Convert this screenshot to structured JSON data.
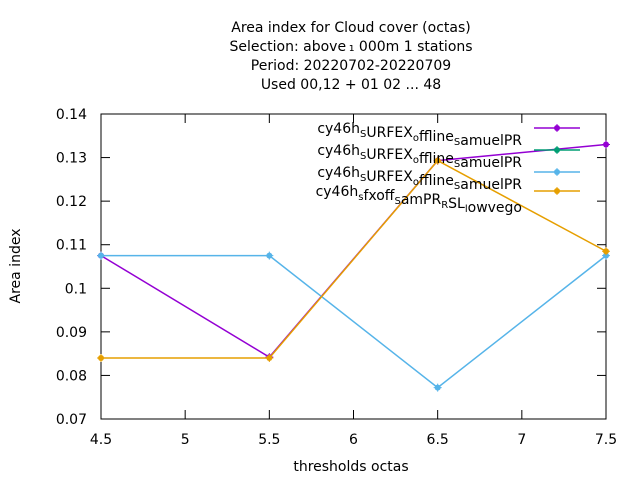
{
  "chart_data": {
    "type": "line",
    "title_lines": [
      "Area index  for Cloud cover (octas)",
      "Selection: above ₁ 000m       1 stations",
      "Period: 20220702-20220709",
      "Used  00,12  + 01 02 ... 48"
    ],
    "xlabel": "thresholds octas",
    "ylabel": "Area index",
    "xlim": [
      4.5,
      7.5
    ],
    "ylim": [
      0.07,
      0.14
    ],
    "xticks": [
      "4.5",
      "5",
      "5.5",
      "6",
      "6.5",
      "7",
      "7.5"
    ],
    "xtick_values": [
      4.5,
      5,
      5.5,
      6,
      6.5,
      7,
      7.5
    ],
    "yticks": [
      "0.07",
      "0.08",
      "0.09",
      "0.1",
      "0.11",
      "0.12",
      "0.13",
      "0.14"
    ],
    "ytick_values": [
      0.07,
      0.08,
      0.09,
      0.1,
      0.11,
      0.12,
      0.13,
      0.14
    ],
    "grid": false,
    "legend_position": "top-right",
    "series": [
      {
        "name": "cy46h_SURFEX_offline_SamuelPR",
        "legend_parts": [
          [
            "cy46h",
            "n"
          ],
          [
            "S",
            "s"
          ],
          [
            "URFEX",
            "n"
          ],
          [
            "o",
            "s"
          ],
          [
            "ffline",
            "n"
          ],
          [
            "S",
            "s"
          ],
          [
            "amuelPR",
            "n"
          ]
        ],
        "color": "#9400d3",
        "x": [
          4.5,
          5.5,
          6.5,
          7.5
        ],
        "y": [
          0.1075,
          0.0842,
          0.1293,
          0.133
        ]
      },
      {
        "name": "cy46h_SURFEX_offline_SamuelPR",
        "legend_parts": [
          [
            "cy46h",
            "n"
          ],
          [
            "S",
            "s"
          ],
          [
            "URFEX",
            "n"
          ],
          [
            "o",
            "s"
          ],
          [
            "ffline",
            "n"
          ],
          [
            "S",
            "s"
          ],
          [
            "amuelPR",
            "n"
          ]
        ],
        "color": "#009e73",
        "x": [],
        "y": []
      },
      {
        "name": "cy46h_SURFEX_offline_SamuelPR",
        "legend_parts": [
          [
            "cy46h",
            "n"
          ],
          [
            "S",
            "s"
          ],
          [
            "URFEX",
            "n"
          ],
          [
            "o",
            "s"
          ],
          [
            "ffline",
            "n"
          ],
          [
            "S",
            "s"
          ],
          [
            "amuelPR",
            "n"
          ]
        ],
        "color": "#56b4e9",
        "x": [
          4.5,
          5.5,
          6.5,
          7.5
        ],
        "y": [
          0.1075,
          0.1075,
          0.0772,
          0.1075
        ]
      },
      {
        "name": "cy46h_sfxoff_SamPR_RSL_lowvego",
        "legend_parts": [
          [
            "cy46h",
            "n"
          ],
          [
            "s",
            "s"
          ],
          [
            "fxoff",
            "n"
          ],
          [
            "S",
            "s"
          ],
          [
            "amPR",
            "n"
          ],
          [
            "R",
            "s"
          ],
          [
            "SL",
            "n"
          ],
          [
            "l",
            "s"
          ],
          [
            "owvego",
            "n"
          ]
        ],
        "color": "#e69f00",
        "x": [
          4.5,
          5.5,
          6.5,
          7.5
        ],
        "y": [
          0.084,
          0.084,
          0.1293,
          0.1085
        ]
      }
    ]
  }
}
